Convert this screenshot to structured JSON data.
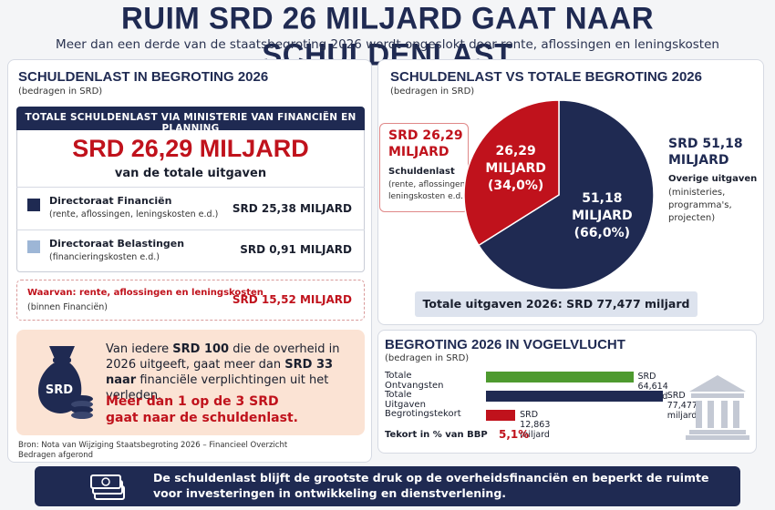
{
  "header": {
    "title": "RUIM SRD 26 MILJARD GAAT NAAR SCHULDENLAST",
    "subtitle": "Meer dan een derde van de staatsbegroting 2026 wordt opgeslokt door rente, aflossingen en leningskosten"
  },
  "left_panel": {
    "title": "SCHULDENLAST IN BEGROTING 2026",
    "unit": "(bedragen in SRD)",
    "box_header": "TOTALE SCHULDENLAST VIA MINISTERIE VAN FINANCIËN EN PLANNING",
    "total_amount": "SRD 26,29 MILJARD",
    "total_caption": "van de totale uitgaven",
    "rows": [
      {
        "name": "Directoraat Financiën",
        "detail": "(rente, aflossingen, leningskosten e.d.)",
        "amount": "SRD 25,38 MILJARD",
        "color": "#1f2a52"
      },
      {
        "name": "Directoraat Belastingen",
        "detail": "(financieringskosten e.d.)",
        "amount": "SRD 0,91 MILJARD",
        "color": "#9db6d6"
      }
    ],
    "waarvan": {
      "label": "Waarvan: rente, aflossingen en leningskosten",
      "sub": "(binnen Financiën)",
      "amount": "SRD 15,52 MILJARD"
    }
  },
  "callout": {
    "icon_text": "SRD",
    "text_parts": {
      "p1": "Van iedere ",
      "b1": "SRD 100",
      "p2": " die de overheid in 2026 uitgeeft, gaat meer dan ",
      "b2": "SRD 33 naar",
      "p3": " financiële verplichtingen uit het verleden."
    },
    "highlight_line1": "Meer dan 1 op de 3 SRD",
    "highlight_line2": "gaat naar de schuldenlast."
  },
  "source": {
    "line1": "Bron: Nota van Wijziging Staatsbegroting 2026 – Financieel Overzicht",
    "line2": "Bedragen afgerond"
  },
  "pie_panel": {
    "title": "SCHULDENLAST VS TOTALE BEGROTING 2026",
    "unit": "(bedragen in SRD)",
    "left_label": {
      "amount_line1": "SRD 26,29",
      "amount_line2": "MILJARD",
      "name": "Schuldenlast",
      "detail1": "(rente, aflossingen,",
      "detail2": "leningskosten e.d.)"
    },
    "right_label": {
      "amount_line1": "SRD 51,18",
      "amount_line2": "MILJARD",
      "name": "Overige uitgaven",
      "detail1": "(ministeries,",
      "detail2": "programma's,",
      "detail3": "projecten)"
    },
    "slice_labels": {
      "debt": {
        "l1": "26,29",
        "l2": "MILJARD",
        "l3": "(34,0%)"
      },
      "other": {
        "l1": "51,18",
        "l2": "MILJARD",
        "l3": "(66,0%)"
      }
    },
    "total_line": "Totale uitgaven 2026: SRD 77,477 miljard"
  },
  "bar_panel": {
    "title": "BEGROTING 2026 IN VOGELVLUCHT",
    "unit": "(bedragen in SRD)",
    "tekort_label": "Tekort in % van BBP",
    "tekort_value": "5,1%"
  },
  "footer": {
    "line1": "De schuldenlast blijft de grootste druk op de overheidsfinanciën en beperkt de ruimte",
    "line2": "voor investeringen in ontwikkeling en dienstverlening."
  },
  "colors": {
    "navy": "#1f2a52",
    "red": "#c0121c",
    "green": "#4e9a2f",
    "light_blue": "#9db6d6"
  },
  "chart_data": [
    {
      "type": "pie",
      "title": "SCHULDENLAST VS TOTALE BEGROTING 2026",
      "categories": [
        "Schuldenlast",
        "Overige uitgaven"
      ],
      "values": [
        26.29,
        51.18
      ],
      "percent": [
        34.0,
        66.0
      ],
      "colors": [
        "#c0121c",
        "#1f2a52"
      ]
    },
    {
      "type": "bar",
      "title": "BEGROTING 2026 IN VOGELVLUCHT",
      "categories": [
        "Totale Ontvangsten",
        "Totale Uitgaven",
        "Begrotingstekort"
      ],
      "values": [
        64.614,
        77.477,
        12.863
      ],
      "value_labels": [
        "SRD 64,614 miljard",
        "SRD 77,477 miljard",
        "SRD 12,863 miljard"
      ],
      "colors": [
        "#4e9a2f",
        "#1f2a52",
        "#c0121c"
      ]
    }
  ]
}
